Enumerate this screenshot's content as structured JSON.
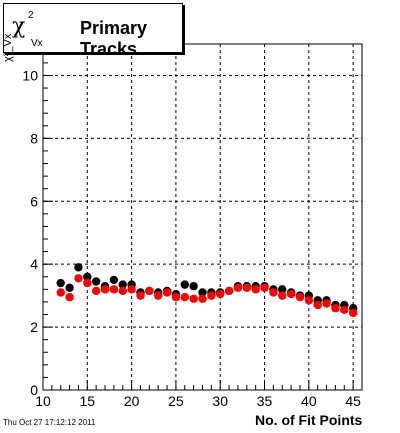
{
  "title": {
    "symbol": "χ",
    "superscript": "2",
    "subscript": "Vx",
    "text": "Primary Tracks"
  },
  "y_axis_label": "χ²_Vx",
  "timestamp": "Thu Oct 27 17:12:12 2011",
  "chart_data": {
    "type": "scatter",
    "title": "Primary Tracks",
    "xlabel": "No. of Fit Points",
    "ylabel": "χ²_Vx",
    "xlim": [
      10,
      46
    ],
    "ylim": [
      0,
      11
    ],
    "xticks": [
      10,
      15,
      20,
      25,
      30,
      35,
      40,
      45
    ],
    "yticks": [
      0,
      2,
      4,
      6,
      8,
      10
    ],
    "grid": true,
    "colors": [
      "#000000",
      "#ff0000"
    ],
    "series": [
      {
        "x": [
          12,
          13,
          14,
          15,
          16,
          17,
          18,
          19,
          20,
          21,
          22,
          23,
          24,
          25,
          26,
          27,
          28,
          29,
          30,
          31,
          32,
          33,
          34,
          35,
          36,
          37,
          38,
          39,
          40,
          41,
          42,
          43,
          44,
          45
        ],
        "values": [
          3.4,
          3.25,
          3.9,
          3.6,
          3.45,
          3.3,
          3.5,
          3.35,
          3.35,
          3.1,
          3.15,
          3.1,
          3.15,
          3.05,
          3.35,
          3.3,
          3.1,
          3.1,
          3.1,
          3.15,
          3.3,
          3.3,
          3.3,
          3.3,
          3.2,
          3.2,
          3.1,
          3.0,
          3.0,
          2.85,
          2.85,
          2.7,
          2.7,
          2.6
        ]
      },
      {
        "x": [
          12,
          13,
          14,
          15,
          16,
          17,
          18,
          19,
          20,
          21,
          22,
          23,
          24,
          25,
          26,
          27,
          28,
          29,
          30,
          31,
          32,
          33,
          34,
          35,
          36,
          37,
          38,
          39,
          40,
          41,
          42,
          43,
          44,
          45
        ],
        "values": [
          3.1,
          2.95,
          3.55,
          3.4,
          3.15,
          3.2,
          3.2,
          3.15,
          3.2,
          3.0,
          3.15,
          3.0,
          3.1,
          2.95,
          2.95,
          2.9,
          2.9,
          3.0,
          3.05,
          3.15,
          3.25,
          3.25,
          3.2,
          3.25,
          3.1,
          3.0,
          3.05,
          2.95,
          2.85,
          2.7,
          2.75,
          2.6,
          2.55,
          2.45
        ]
      }
    ]
  }
}
